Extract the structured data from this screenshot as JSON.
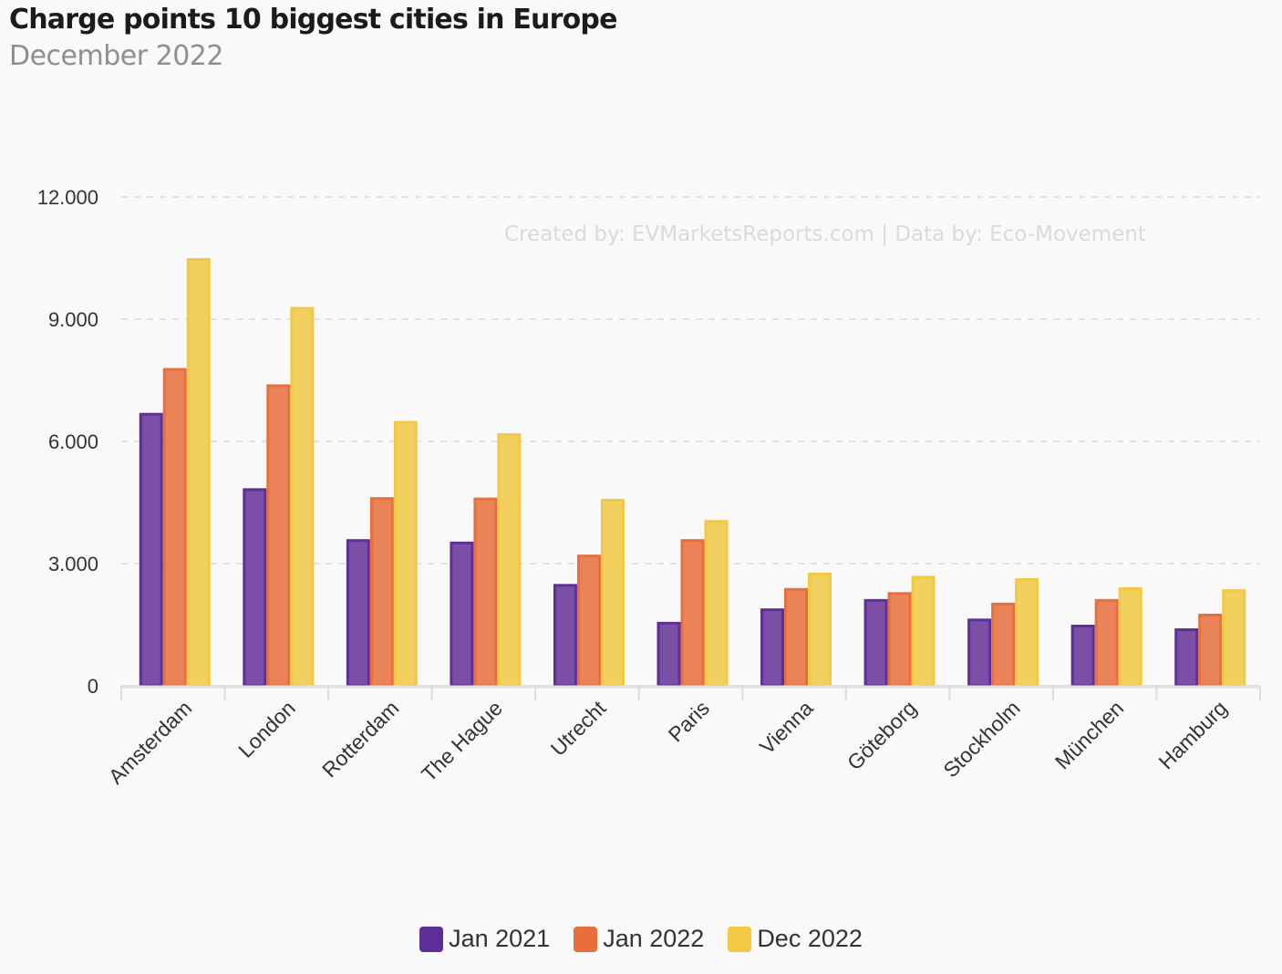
{
  "chart_data": {
    "type": "bar",
    "title": "Charge points 10 biggest cities in Europe",
    "subtitle": "December 2022",
    "watermark": "Created by: EVMarketsReports.com | Data by: Eco-Movement",
    "xlabel": "",
    "ylabel": "",
    "ylim": [
      0,
      12000
    ],
    "yticks": [
      0,
      3000,
      6000,
      9000,
      12000
    ],
    "ytick_labels": [
      "0",
      "3.000",
      "6.000",
      "9.000",
      "12.000"
    ],
    "grid": true,
    "legend_position": "bottom",
    "categories": [
      "Amsterdam",
      "London",
      "Rotterdam",
      "The Hague",
      "Utrecht",
      "Paris",
      "Vienna",
      "Göteborg",
      "Stockholm",
      "München",
      "Hamburg"
    ],
    "series": [
      {
        "name": "Jan 2021",
        "color": "#5e2f97",
        "fill": "#7a4fa5",
        "values": [
          6700,
          4850,
          3600,
          3540,
          2500,
          1570,
          1900,
          2130,
          1650,
          1500,
          1410
        ]
      },
      {
        "name": "Jan 2022",
        "color": "#e86e3b",
        "fill": "#ea8458",
        "values": [
          7800,
          7400,
          4630,
          4620,
          3220,
          3600,
          2400,
          2300,
          2040,
          2130,
          1770
        ]
      },
      {
        "name": "Dec 2022",
        "color": "#f2c845",
        "fill": "#f1d060",
        "values": [
          10500,
          9300,
          6500,
          6200,
          4590,
          4070,
          2780,
          2700,
          2640,
          2420,
          2370
        ]
      }
    ]
  }
}
